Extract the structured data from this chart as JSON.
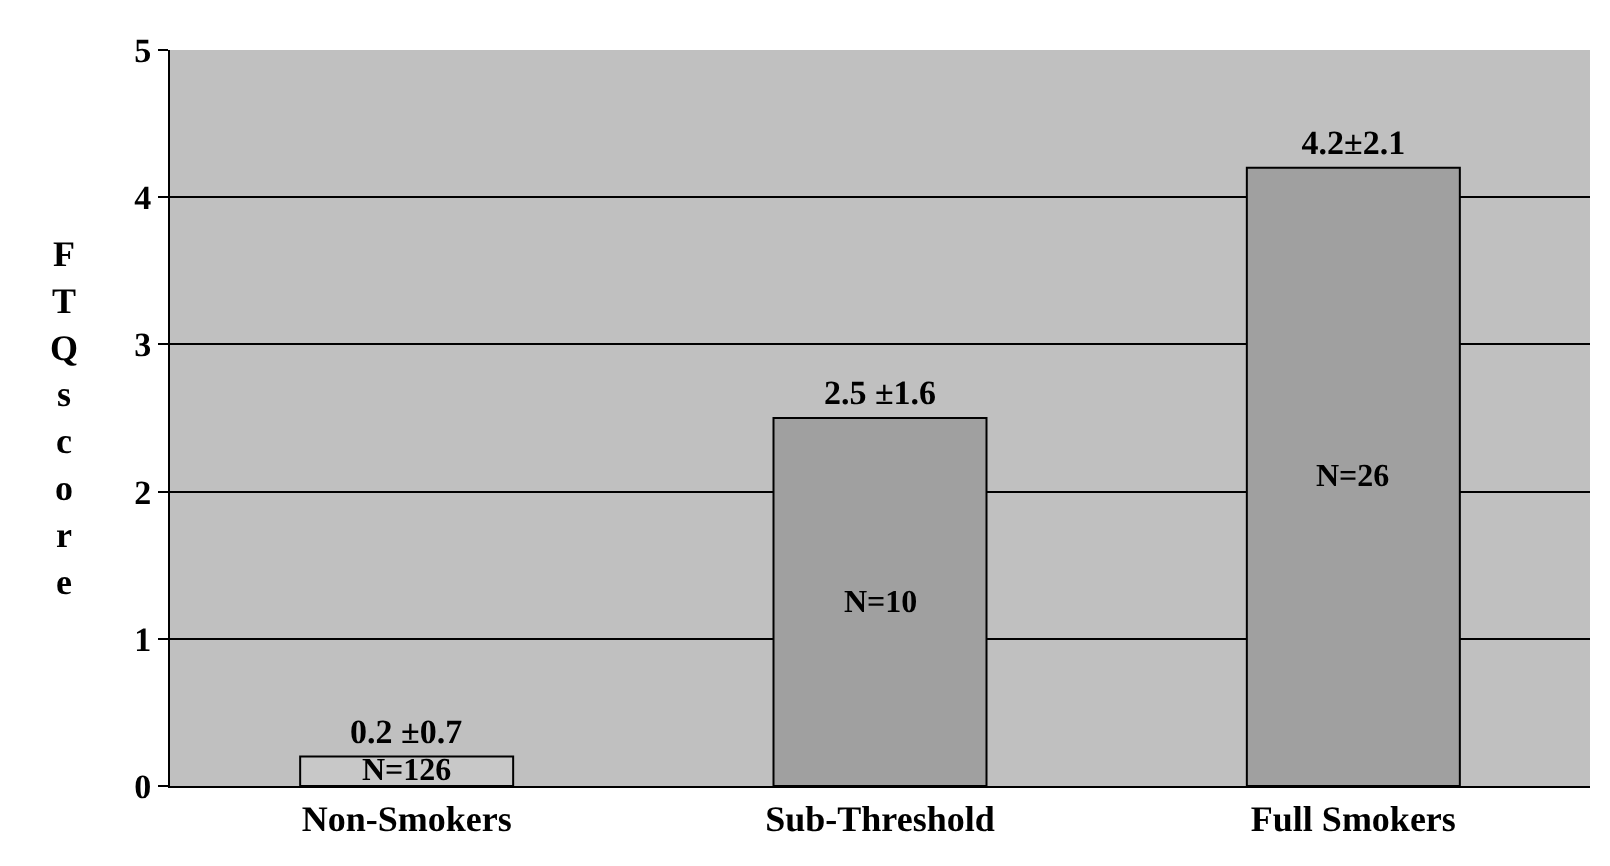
{
  "chart_data": {
    "type": "bar",
    "ylabel": "FTQ score",
    "categories": [
      "Non-Smokers",
      "Sub-Threshold",
      "Full Smokers"
    ],
    "values": [
      0.2,
      2.5,
      4.2
    ],
    "colors": [
      "#c8c8c8",
      "#a0a0a0",
      "#a0a0a0"
    ],
    "value_labels": [
      "0.2 ±0.7",
      "2.5 ±1.6",
      "4.2±2.1"
    ],
    "annotations": [
      "N=126",
      "N=10",
      "N=26"
    ],
    "ylim": [
      0,
      5
    ],
    "yticks": [
      0,
      1,
      2,
      3,
      4,
      5
    ],
    "grid": "y"
  }
}
